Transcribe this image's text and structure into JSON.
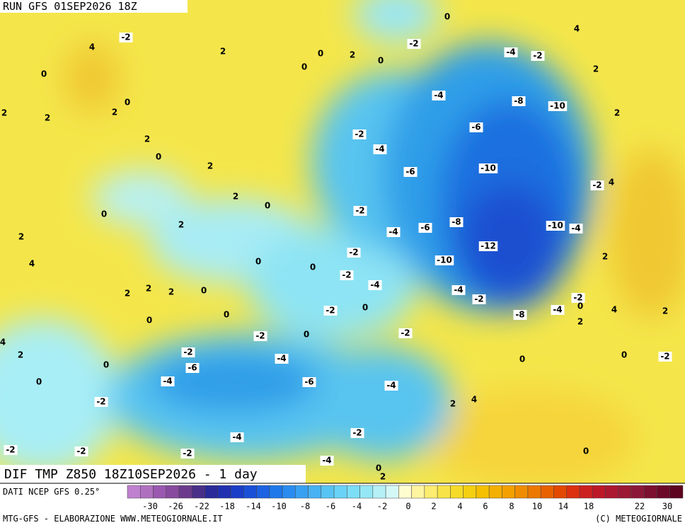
{
  "header": {
    "title": "RUN GFS 01SEP2026 18Z"
  },
  "map": {
    "caption": "DIF TMP Z850 18Z10SEP2026 - 1 day",
    "labels": [
      "-2",
      "4",
      "2",
      "0",
      "2",
      "0",
      "0",
      "0",
      "-2",
      "4",
      "-4",
      "-2",
      "2",
      "0",
      "2",
      "0",
      "2",
      "2",
      "-4",
      "-8",
      "-10",
      "2",
      "-6",
      "2",
      "-2",
      "-4",
      "0",
      "2",
      "-6",
      "-10",
      "-2",
      "4",
      "2",
      "0",
      "0",
      "-2",
      "2",
      "2",
      "-8",
      "-6",
      "-4",
      "-10",
      "-4",
      "4",
      "-2",
      "-12",
      "-10",
      "0",
      "0",
      "2",
      "-2",
      "-4",
      "-4",
      "-2",
      "2",
      "2",
      "2",
      "0",
      "-2",
      "-4",
      "0",
      "-2",
      "0",
      "-8",
      "4",
      "2",
      "0",
      "0",
      "2",
      "-2",
      "0",
      "-2",
      "4",
      "2",
      "-2",
      "-4",
      "0",
      "0",
      "-2",
      "0",
      "-6",
      "-4",
      "-6",
      "-4",
      "0",
      "-2",
      "4",
      "2",
      "-4",
      "-2",
      "-2",
      "-2",
      "-2",
      "0",
      "-4",
      "0",
      "2"
    ]
  },
  "legend": {
    "source": "DATI NCEP GFS 0.25°",
    "ticks": [
      "-30",
      "-26",
      "-22",
      "-18",
      "-14",
      "-10",
      "-8",
      "-6",
      "-4",
      "-2",
      "0",
      "2",
      "4",
      "6",
      "8",
      "10",
      "14",
      "18",
      "22",
      "30"
    ]
  },
  "footer": {
    "left": "MTG-GFS - ELABORAZIONE WWW.METEOGIORNALE.IT",
    "right": "(C) METEOGIORNALE"
  }
}
